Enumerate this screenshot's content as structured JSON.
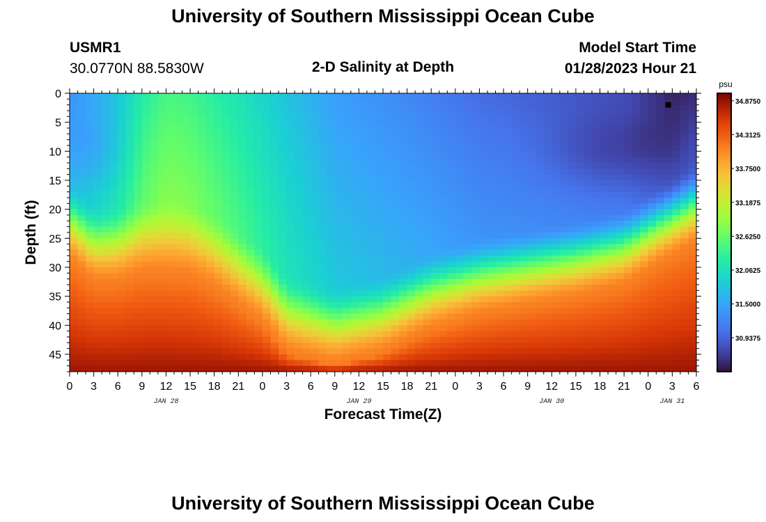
{
  "page": {
    "title": "University of Southern Mississippi Ocean Cube",
    "repeat_title": "University of Southern Mississippi Ocean Cube"
  },
  "station": {
    "id": "USMR1",
    "coords": "30.0770N  88.5830W"
  },
  "model": {
    "label": "Model Start Time",
    "time": "01/28/2023 Hour 21"
  },
  "chart_data": {
    "type": "heatmap",
    "title": "2-D Salinity at Depth",
    "xlabel": "Forecast Time(Z)",
    "ylabel": "Depth (ft)",
    "x_range_hours": [
      0,
      78
    ],
    "y_range_ft": [
      0,
      48
    ],
    "y_inverted": true,
    "x_ticks": [
      "0",
      "3",
      "6",
      "9",
      "12",
      "15",
      "18",
      "21",
      "0",
      "3",
      "6",
      "9",
      "12",
      "15",
      "18",
      "21",
      "0",
      "3",
      "6",
      "9",
      "12",
      "15",
      "18",
      "21",
      "0",
      "3",
      "6"
    ],
    "x_day_labels": [
      {
        "label": "JAN 28",
        "hour": 12
      },
      {
        "label": "JAN 29",
        "hour": 36
      },
      {
        "label": "JAN 30",
        "hour": 60
      },
      {
        "label": "JAN 31",
        "hour": 75
      }
    ],
    "y_ticks": [
      0,
      5,
      10,
      15,
      20,
      25,
      30,
      35,
      40,
      45
    ],
    "colorbar": {
      "unit": "psu",
      "min": 30.375,
      "max": 35.0,
      "labels": [
        "34.8750",
        "34.3125",
        "33.7500",
        "33.1875",
        "32.6250",
        "32.0625",
        "31.5000",
        "30.9375"
      ],
      "label_values": [
        34.875,
        34.3125,
        33.75,
        33.1875,
        32.625,
        32.0625,
        31.5,
        30.9375
      ]
    },
    "interface_depth_ft": [
      {
        "hour": 0,
        "depth": 22
      },
      {
        "hour": 3,
        "depth": 26
      },
      {
        "hour": 6,
        "depth": 26
      },
      {
        "hour": 9,
        "depth": 24.5
      },
      {
        "hour": 12,
        "depth": 24.5
      },
      {
        "hour": 15,
        "depth": 25
      },
      {
        "hour": 18,
        "depth": 27
      },
      {
        "hour": 24,
        "depth": 33
      },
      {
        "hour": 27,
        "depth": 38
      },
      {
        "hour": 33,
        "depth": 40
      },
      {
        "hour": 39,
        "depth": 38
      },
      {
        "hour": 45,
        "depth": 34
      },
      {
        "hour": 51,
        "depth": 31.5
      },
      {
        "hour": 57,
        "depth": 30
      },
      {
        "hour": 63,
        "depth": 28.5
      },
      {
        "hour": 69,
        "depth": 26.5
      },
      {
        "hour": 73,
        "depth": 23
      },
      {
        "hour": 78,
        "depth": 19
      }
    ],
    "surface_salinity_psu": [
      {
        "hour": 0,
        "value": 31.4
      },
      {
        "hour": 6,
        "value": 31.8
      },
      {
        "hour": 9,
        "value": 32.2
      },
      {
        "hour": 12,
        "value": 32.45
      },
      {
        "hour": 15,
        "value": 32.4
      },
      {
        "hour": 21,
        "value": 32.1
      },
      {
        "hour": 27,
        "value": 31.75
      },
      {
        "hour": 33,
        "value": 31.45
      },
      {
        "hour": 42,
        "value": 31.25
      },
      {
        "hour": 51,
        "value": 31.0
      },
      {
        "hour": 60,
        "value": 30.9
      },
      {
        "hour": 69,
        "value": 30.8
      },
      {
        "hour": 75,
        "value": 30.5
      },
      {
        "hour": 78,
        "value": 30.55
      }
    ],
    "bottom_salinity_psu": 34.85,
    "current_time_marker": {
      "hour": 74.5,
      "depth_ft": 2
    }
  }
}
